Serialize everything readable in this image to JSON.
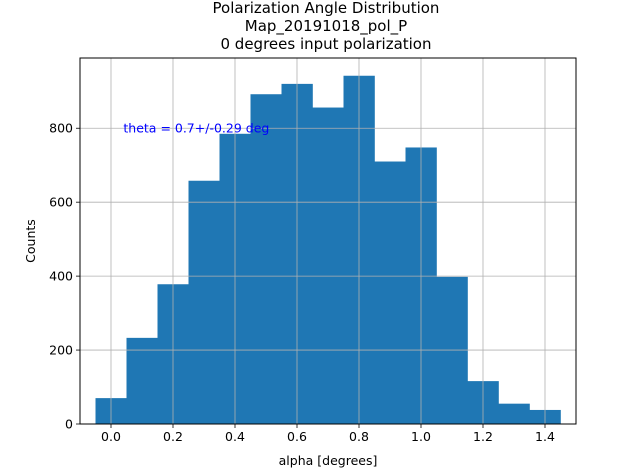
{
  "chart_data": {
    "type": "bar",
    "title_lines": [
      "Polarization Angle Distribution",
      "Map_20191018_pol_P",
      "0 degrees input polarization"
    ],
    "xlabel": "alpha [degrees]",
    "ylabel": "Counts",
    "xlim": [
      -0.1,
      1.5
    ],
    "ylim": [
      0,
      990
    ],
    "xticks": [
      0.0,
      0.2,
      0.4,
      0.6,
      0.8,
      1.0,
      1.2,
      1.4
    ],
    "xtick_labels": [
      "0.0",
      "0.2",
      "0.4",
      "0.6",
      "0.8",
      "1.0",
      "1.2",
      "1.4"
    ],
    "yticks": [
      0,
      200,
      400,
      600,
      800
    ],
    "ytick_labels": [
      "0",
      "200",
      "400",
      "600",
      "800"
    ],
    "grid": true,
    "bar_color": "#1f77b4",
    "bin_edges": [
      -0.05,
      0.05,
      0.15,
      0.25,
      0.35,
      0.45,
      0.55,
      0.65,
      0.75,
      0.85,
      0.95,
      1.05,
      1.15,
      1.25,
      1.35,
      1.45
    ],
    "values": [
      70,
      233,
      378,
      658,
      785,
      892,
      920,
      856,
      942,
      710,
      748,
      398,
      116,
      55,
      38
    ],
    "annotation": {
      "text": "theta = 0.7+/-0.29 deg",
      "x": 0.04,
      "y": 800,
      "color": "#0000ff"
    }
  }
}
